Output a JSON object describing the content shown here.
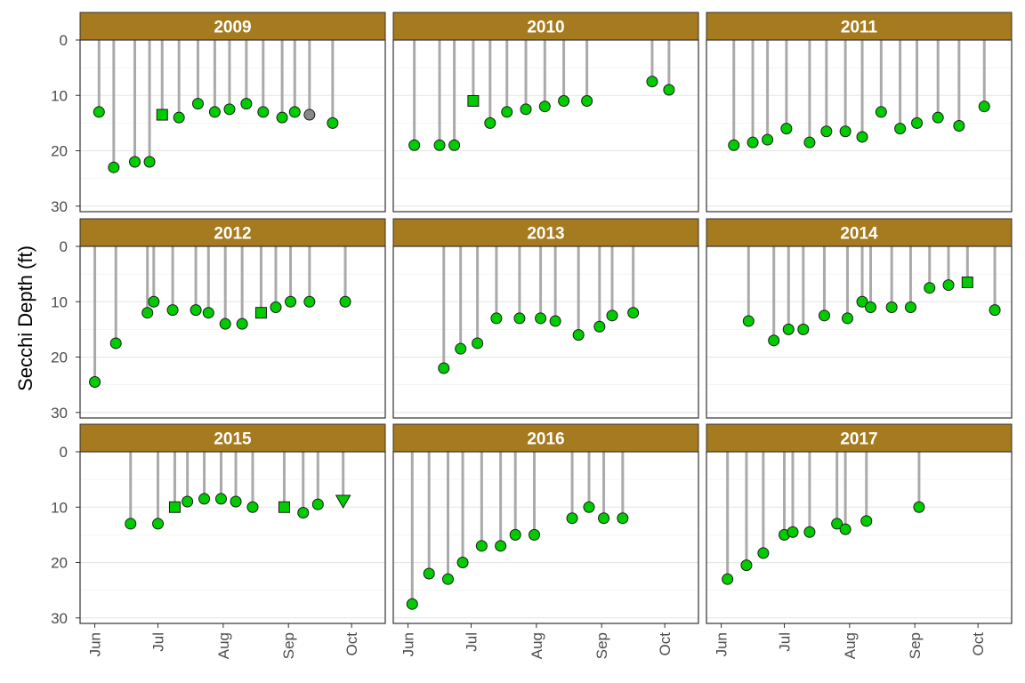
{
  "chart_data": {
    "type": "lollipop-facet",
    "ylabel": "Secchi Depth (ft)",
    "xlabel": "",
    "y_axis": {
      "reversed": true,
      "ylim": [
        0,
        31
      ],
      "ticks": [
        0,
        10,
        20,
        30
      ]
    },
    "x_axis": {
      "unit": "day of year",
      "xlim": [
        145,
        290
      ],
      "ticks": [
        152,
        182,
        213,
        244,
        274
      ],
      "tick_labels": [
        "Jun",
        "Jul",
        "Aug",
        "Sep",
        "Oct"
      ]
    },
    "strip_color": "#a67a1e",
    "marker_colors": {
      "circle": "#00cc00",
      "square": "#00cc00",
      "triangle": "#00cc00",
      "gray_circle": "#888888"
    },
    "grid": true,
    "panels": [
      {
        "year": "2009",
        "points": [
          {
            "x": 154,
            "y": 13,
            "shape": "circle"
          },
          {
            "x": 161,
            "y": 23,
            "shape": "circle"
          },
          {
            "x": 171,
            "y": 22,
            "shape": "circle"
          },
          {
            "x": 178,
            "y": 22,
            "shape": "circle"
          },
          {
            "x": 184,
            "y": 13.5,
            "shape": "square"
          },
          {
            "x": 192,
            "y": 14,
            "shape": "circle"
          },
          {
            "x": 201,
            "y": 11.5,
            "shape": "circle"
          },
          {
            "x": 209,
            "y": 13,
            "shape": "circle"
          },
          {
            "x": 216,
            "y": 12.5,
            "shape": "circle"
          },
          {
            "x": 224,
            "y": 11.5,
            "shape": "circle"
          },
          {
            "x": 232,
            "y": 13,
            "shape": "circle"
          },
          {
            "x": 241,
            "y": 14,
            "shape": "circle"
          },
          {
            "x": 247,
            "y": 13,
            "shape": "circle"
          },
          {
            "x": 254,
            "y": 13.5,
            "shape": "gray_circle"
          },
          {
            "x": 265,
            "y": 15,
            "shape": "circle"
          }
        ]
      },
      {
        "year": "2010",
        "points": [
          {
            "x": 155,
            "y": 19,
            "shape": "circle"
          },
          {
            "x": 167,
            "y": 19,
            "shape": "circle"
          },
          {
            "x": 174,
            "y": 19,
            "shape": "circle"
          },
          {
            "x": 183,
            "y": 11,
            "shape": "square"
          },
          {
            "x": 191,
            "y": 15,
            "shape": "circle"
          },
          {
            "x": 199,
            "y": 13,
            "shape": "circle"
          },
          {
            "x": 208,
            "y": 12.5,
            "shape": "circle"
          },
          {
            "x": 217,
            "y": 12,
            "shape": "circle"
          },
          {
            "x": 226,
            "y": 11,
            "shape": "circle"
          },
          {
            "x": 237,
            "y": 11,
            "shape": "circle"
          },
          {
            "x": 268,
            "y": 7.5,
            "shape": "circle"
          },
          {
            "x": 276,
            "y": 9,
            "shape": "circle"
          }
        ]
      },
      {
        "year": "2011",
        "points": [
          {
            "x": 158,
            "y": 19,
            "shape": "circle"
          },
          {
            "x": 167,
            "y": 18.5,
            "shape": "circle"
          },
          {
            "x": 174,
            "y": 18,
            "shape": "circle"
          },
          {
            "x": 183,
            "y": 16,
            "shape": "circle"
          },
          {
            "x": 194,
            "y": 18.5,
            "shape": "circle"
          },
          {
            "x": 202,
            "y": 16.5,
            "shape": "circle"
          },
          {
            "x": 211,
            "y": 16.5,
            "shape": "circle"
          },
          {
            "x": 219,
            "y": 17.5,
            "shape": "circle"
          },
          {
            "x": 228,
            "y": 13,
            "shape": "circle"
          },
          {
            "x": 237,
            "y": 16,
            "shape": "circle"
          },
          {
            "x": 245,
            "y": 15,
            "shape": "circle"
          },
          {
            "x": 255,
            "y": 14,
            "shape": "circle"
          },
          {
            "x": 265,
            "y": 15.5,
            "shape": "circle"
          },
          {
            "x": 277,
            "y": 12,
            "shape": "circle"
          }
        ]
      },
      {
        "year": "2012",
        "points": [
          {
            "x": 152,
            "y": 24.5,
            "shape": "circle"
          },
          {
            "x": 162,
            "y": 17.5,
            "shape": "circle"
          },
          {
            "x": 177,
            "y": 12,
            "shape": "circle"
          },
          {
            "x": 180,
            "y": 10,
            "shape": "circle"
          },
          {
            "x": 189,
            "y": 11.5,
            "shape": "circle"
          },
          {
            "x": 200,
            "y": 11.5,
            "shape": "circle"
          },
          {
            "x": 206,
            "y": 12,
            "shape": "circle"
          },
          {
            "x": 214,
            "y": 14,
            "shape": "circle"
          },
          {
            "x": 222,
            "y": 14,
            "shape": "circle"
          },
          {
            "x": 231,
            "y": 12,
            "shape": "square"
          },
          {
            "x": 238,
            "y": 11,
            "shape": "circle"
          },
          {
            "x": 245,
            "y": 10,
            "shape": "circle"
          },
          {
            "x": 254,
            "y": 10,
            "shape": "circle"
          },
          {
            "x": 271,
            "y": 10,
            "shape": "circle"
          }
        ]
      },
      {
        "year": "2013",
        "points": [
          {
            "x": 169,
            "y": 22,
            "shape": "circle"
          },
          {
            "x": 177,
            "y": 18.5,
            "shape": "circle"
          },
          {
            "x": 185,
            "y": 17.5,
            "shape": "circle"
          },
          {
            "x": 194,
            "y": 13,
            "shape": "circle"
          },
          {
            "x": 205,
            "y": 13,
            "shape": "circle"
          },
          {
            "x": 215,
            "y": 13,
            "shape": "circle"
          },
          {
            "x": 222,
            "y": 13.5,
            "shape": "circle"
          },
          {
            "x": 233,
            "y": 16,
            "shape": "circle"
          },
          {
            "x": 243,
            "y": 14.5,
            "shape": "circle"
          },
          {
            "x": 249,
            "y": 12.5,
            "shape": "circle"
          },
          {
            "x": 259,
            "y": 12,
            "shape": "circle"
          }
        ]
      },
      {
        "year": "2014",
        "points": [
          {
            "x": 165,
            "y": 13.5,
            "shape": "circle"
          },
          {
            "x": 177,
            "y": 17,
            "shape": "circle"
          },
          {
            "x": 184,
            "y": 15,
            "shape": "circle"
          },
          {
            "x": 191,
            "y": 15,
            "shape": "circle"
          },
          {
            "x": 201,
            "y": 12.5,
            "shape": "circle"
          },
          {
            "x": 212,
            "y": 13,
            "shape": "circle"
          },
          {
            "x": 219,
            "y": 10,
            "shape": "circle"
          },
          {
            "x": 223,
            "y": 11,
            "shape": "circle"
          },
          {
            "x": 233,
            "y": 11,
            "shape": "circle"
          },
          {
            "x": 242,
            "y": 11,
            "shape": "circle"
          },
          {
            "x": 251,
            "y": 7.5,
            "shape": "circle"
          },
          {
            "x": 260,
            "y": 7,
            "shape": "circle"
          },
          {
            "x": 269,
            "y": 6.5,
            "shape": "square"
          },
          {
            "x": 282,
            "y": 11.5,
            "shape": "circle"
          }
        ]
      },
      {
        "year": "2015",
        "points": [
          {
            "x": 169,
            "y": 13,
            "shape": "circle"
          },
          {
            "x": 182,
            "y": 13,
            "shape": "circle"
          },
          {
            "x": 190,
            "y": 10,
            "shape": "square"
          },
          {
            "x": 196,
            "y": 9,
            "shape": "circle"
          },
          {
            "x": 204,
            "y": 8.5,
            "shape": "circle"
          },
          {
            "x": 212,
            "y": 8.5,
            "shape": "circle"
          },
          {
            "x": 219,
            "y": 9,
            "shape": "circle"
          },
          {
            "x": 227,
            "y": 10,
            "shape": "circle"
          },
          {
            "x": 242,
            "y": 10,
            "shape": "square"
          },
          {
            "x": 251,
            "y": 11,
            "shape": "circle"
          },
          {
            "x": 258,
            "y": 9.5,
            "shape": "circle"
          },
          {
            "x": 270,
            "y": 9,
            "shape": "triangle"
          }
        ]
      },
      {
        "year": "2016",
        "points": [
          {
            "x": 154,
            "y": 27.5,
            "shape": "circle"
          },
          {
            "x": 162,
            "y": 22,
            "shape": "circle"
          },
          {
            "x": 171,
            "y": 23,
            "shape": "circle"
          },
          {
            "x": 178,
            "y": 20,
            "shape": "circle"
          },
          {
            "x": 187,
            "y": 17,
            "shape": "circle"
          },
          {
            "x": 196,
            "y": 17,
            "shape": "circle"
          },
          {
            "x": 203,
            "y": 15,
            "shape": "circle"
          },
          {
            "x": 212,
            "y": 15,
            "shape": "circle"
          },
          {
            "x": 230,
            "y": 12,
            "shape": "circle"
          },
          {
            "x": 238,
            "y": 10,
            "shape": "circle"
          },
          {
            "x": 245,
            "y": 12,
            "shape": "circle"
          },
          {
            "x": 254,
            "y": 12,
            "shape": "circle"
          }
        ]
      },
      {
        "year": "2017",
        "points": [
          {
            "x": 155,
            "y": 23,
            "shape": "circle"
          },
          {
            "x": 164,
            "y": 20.5,
            "shape": "circle"
          },
          {
            "x": 172,
            "y": 18.3,
            "shape": "circle"
          },
          {
            "x": 182,
            "y": 15,
            "shape": "circle"
          },
          {
            "x": 186,
            "y": 14.5,
            "shape": "circle"
          },
          {
            "x": 194,
            "y": 14.5,
            "shape": "circle"
          },
          {
            "x": 207,
            "y": 13,
            "shape": "circle"
          },
          {
            "x": 211,
            "y": 14,
            "shape": "circle"
          },
          {
            "x": 221,
            "y": 12.5,
            "shape": "circle"
          },
          {
            "x": 246,
            "y": 10,
            "shape": "circle"
          }
        ]
      }
    ]
  }
}
